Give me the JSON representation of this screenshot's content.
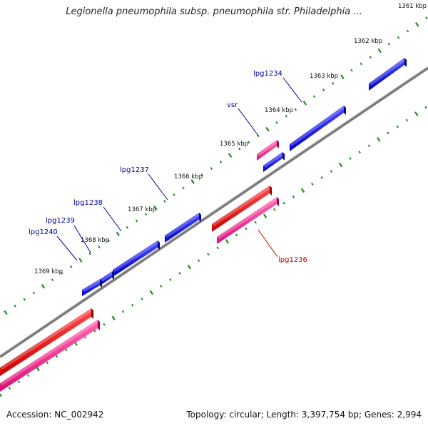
{
  "title": "Legionella pneumophila subsp. pneumophila str. Philadelphia ...",
  "footer": {
    "accession": "Accession: NC_002942",
    "summary": "Topology: circular; Length: 3,397,754 bp; Genes: 2,994"
  },
  "colors": {
    "forward_gene": "#0000ee",
    "reverse_gene": "#ee0000",
    "rna_or_pseudo": "#ee2288",
    "backbone": "#888888",
    "tick": "#228822",
    "label_forward": "#000099",
    "label_reverse": "#cc0000"
  },
  "kbp_labels": [
    "1361 kbp",
    "1362 kbp",
    "1363 kbp",
    "1364 kbp",
    "1365 kbp",
    "1366 kbp",
    "1367 kbp",
    "1368 kbp",
    "1369 kbp"
  ],
  "gene_labels": [
    {
      "text": "lpg1234",
      "strand": "forward"
    },
    {
      "text": "vsr",
      "strand": "forward"
    },
    {
      "text": "lpg1237",
      "strand": "forward"
    },
    {
      "text": "lpg1238",
      "strand": "forward"
    },
    {
      "text": "lpg1239",
      "strand": "forward"
    },
    {
      "text": "lpg1240",
      "strand": "forward"
    },
    {
      "text": "lpg1236",
      "strand": "reverse"
    }
  ]
}
